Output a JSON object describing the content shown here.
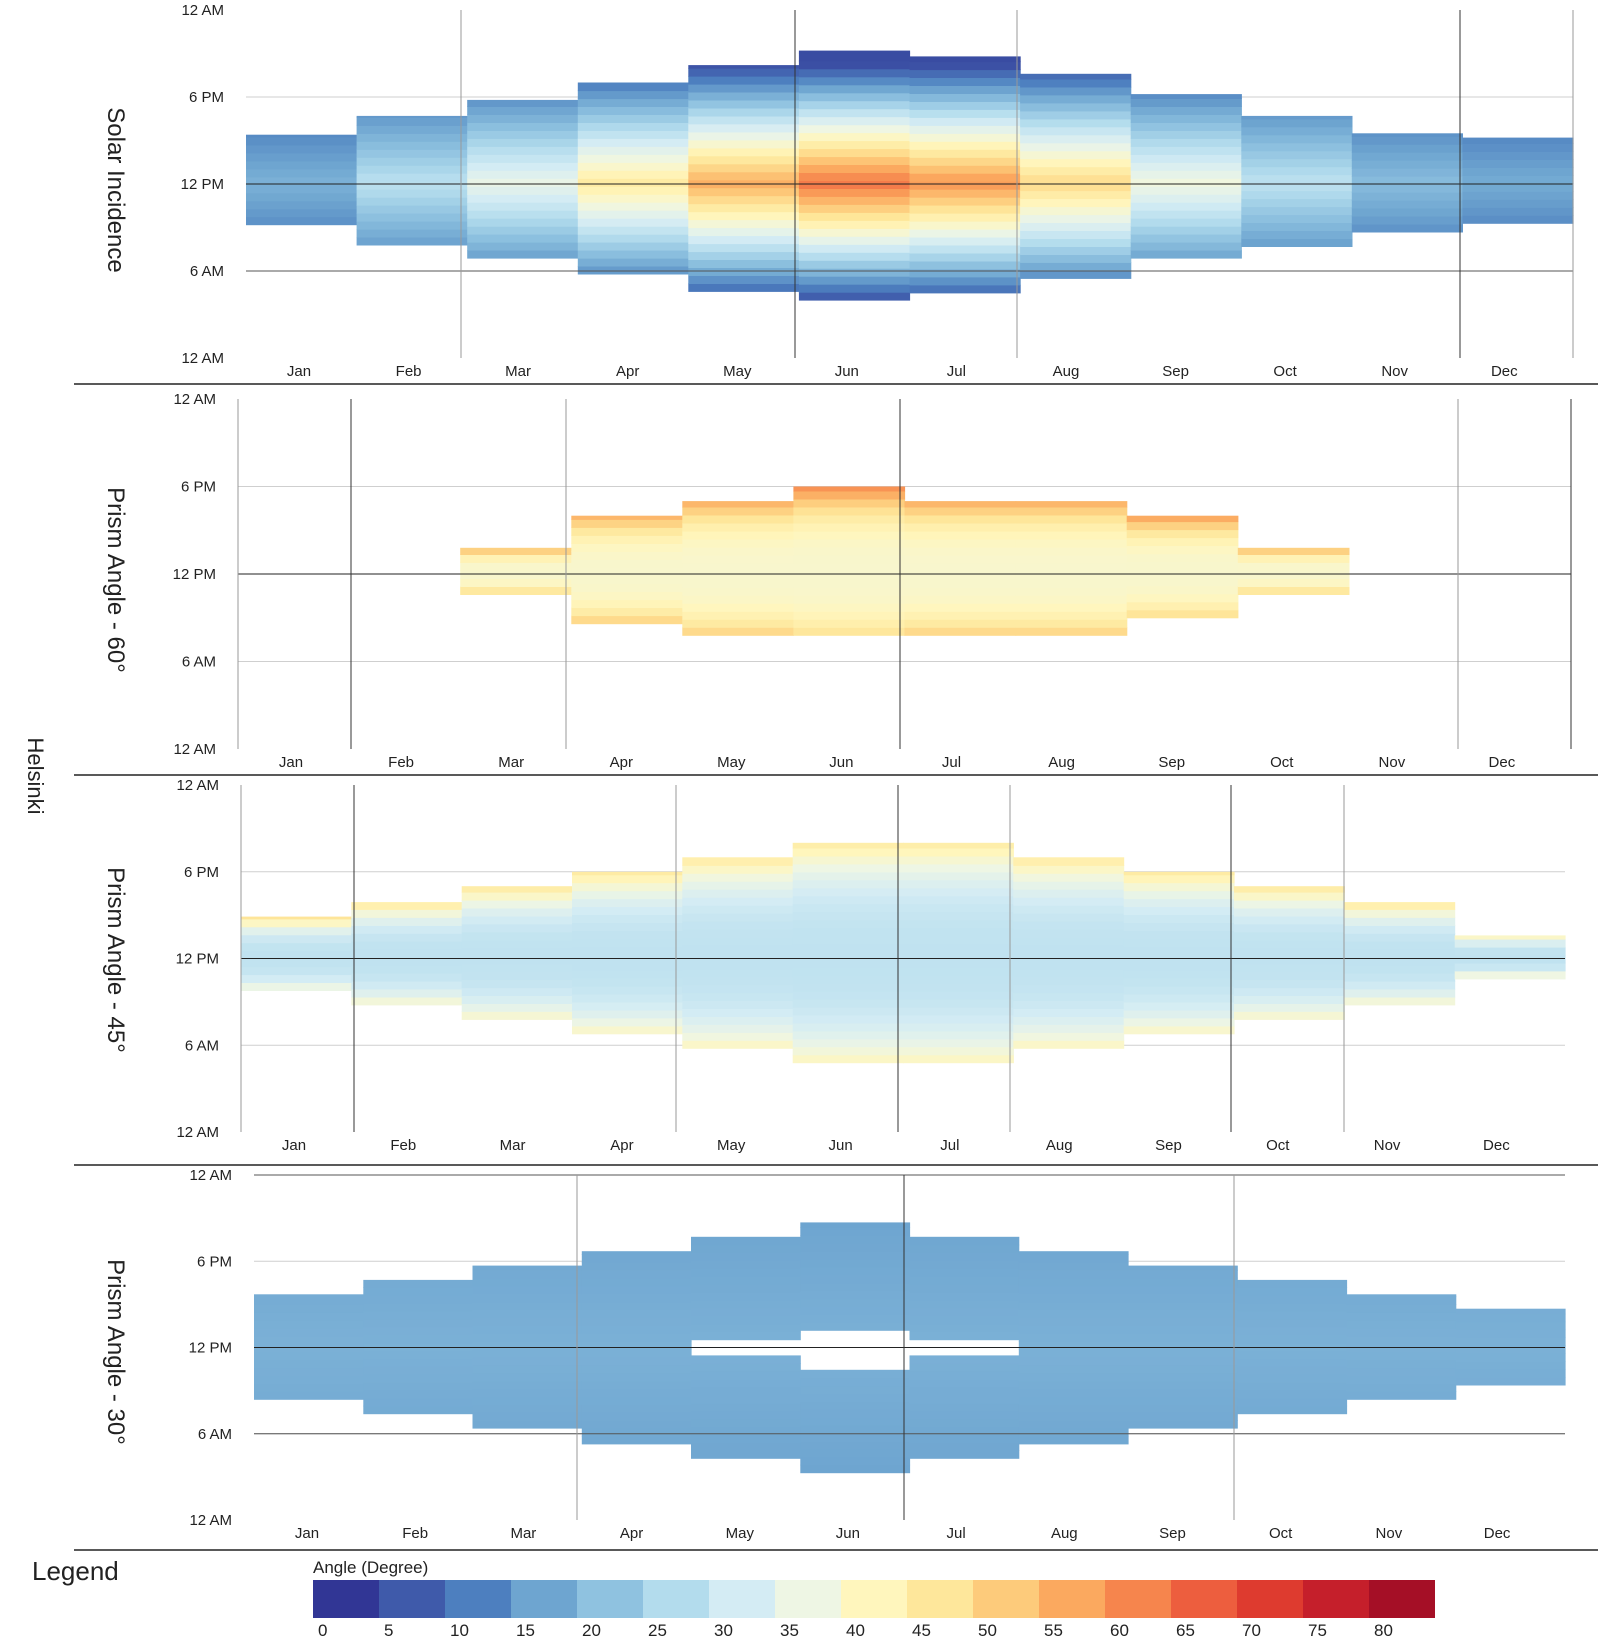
{
  "city": "Helsinki",
  "legend": {
    "title": "Legend",
    "subtitle": "Angle (Degree)",
    "ticks": [
      "0",
      "5",
      "10",
      "15",
      "20",
      "25",
      "30",
      "35",
      "40",
      "45",
      "50",
      "55",
      "60",
      "65",
      "70",
      "75",
      "80"
    ],
    "colors": [
      "#313695",
      "#3f5aaa",
      "#4d7fbf",
      "#6ea5d0",
      "#8fc2e0",
      "#b3dced",
      "#d4ecf4",
      "#eef6e4",
      "#fff6bd",
      "#fee79b",
      "#fdcb7b",
      "#fba95f",
      "#f6854d",
      "#ed5e3e",
      "#de3b2f",
      "#c51f2b",
      "#a50f26"
    ]
  },
  "chart_data": [
    {
      "type": "heatmap",
      "ylabel": "Solar Incidence",
      "x_ticks": [
        "Jan",
        "Feb",
        "Mar",
        "Apr",
        "May",
        "Jun",
        "Jul",
        "Aug",
        "Sep",
        "Oct",
        "Nov",
        "Dec"
      ],
      "y_ticks": [
        "12 AM",
        "6 PM",
        "12 PM",
        "6 AM",
        "12 AM"
      ],
      "y_range_hours": [
        0,
        24
      ],
      "daylight": [
        {
          "month": "Jan",
          "start": 9.2,
          "end": 15.4
        },
        {
          "month": "Feb",
          "start": 7.8,
          "end": 16.7
        },
        {
          "month": "Mar",
          "start": 6.9,
          "end": 17.8
        },
        {
          "month": "Apr",
          "start": 5.8,
          "end": 19.0
        },
        {
          "month": "May",
          "start": 4.6,
          "end": 20.2
        },
        {
          "month": "Jun",
          "start": 4.0,
          "end": 21.2
        },
        {
          "month": "Jul",
          "start": 4.5,
          "end": 20.8
        },
        {
          "month": "Aug",
          "start": 5.5,
          "end": 19.6
        },
        {
          "month": "Sep",
          "start": 6.9,
          "end": 18.2
        },
        {
          "month": "Oct",
          "start": 7.7,
          "end": 16.7
        },
        {
          "month": "Nov",
          "start": 8.7,
          "end": 15.5
        },
        {
          "month": "Dec",
          "start": 9.3,
          "end": 15.2
        }
      ],
      "peak_value": 62,
      "edge_value": 3
    },
    {
      "type": "heatmap",
      "ylabel": "Prism Angle - 60°",
      "x_ticks": [
        "Jan",
        "Feb",
        "Mar",
        "Apr",
        "May",
        "Jun",
        "Jul",
        "Aug",
        "Sep",
        "Oct",
        "Nov",
        "Dec"
      ],
      "y_ticks": [
        "12 AM",
        "6 PM",
        "12 PM",
        "6 AM",
        "12 AM"
      ],
      "y_range_hours": [
        0,
        24
      ],
      "daylight": [
        {
          "month": "Mar",
          "start": 10.6,
          "end": 13.8
        },
        {
          "month": "Apr",
          "start": 8.6,
          "end": 16.0
        },
        {
          "month": "May",
          "start": 7.8,
          "end": 17.0
        },
        {
          "month": "Jun",
          "start": 7.8,
          "end": 18.0
        },
        {
          "month": "Jul",
          "start": 7.8,
          "end": 17.0
        },
        {
          "month": "Aug",
          "start": 7.8,
          "end": 17.0
        },
        {
          "month": "Sep",
          "start": 9.0,
          "end": 16.0
        },
        {
          "month": "Oct",
          "start": 10.6,
          "end": 13.8
        }
      ],
      "peak_value": 38,
      "edge_value": 52
    },
    {
      "type": "heatmap",
      "ylabel": "Prism Angle - 45°",
      "x_ticks": [
        "Jan",
        "Feb",
        "Mar",
        "Apr",
        "May",
        "Jun",
        "Jul",
        "Aug",
        "Sep",
        "Oct",
        "Nov",
        "Dec"
      ],
      "y_ticks": [
        "12 AM",
        "6 PM",
        "12 PM",
        "6 AM",
        "12 AM"
      ],
      "y_range_hours": [
        0,
        24
      ],
      "daylight": [
        {
          "month": "Jan",
          "start": 9.8,
          "end": 14.9
        },
        {
          "month": "Feb",
          "start": 8.8,
          "end": 15.9
        },
        {
          "month": "Mar",
          "start": 7.8,
          "end": 17.0
        },
        {
          "month": "Apr",
          "start": 6.8,
          "end": 18.0
        },
        {
          "month": "May",
          "start": 5.8,
          "end": 19.0
        },
        {
          "month": "Jun",
          "start": 4.8,
          "end": 20.0
        },
        {
          "month": "Jul",
          "start": 4.8,
          "end": 20.0
        },
        {
          "month": "Aug",
          "start": 5.8,
          "end": 19.0
        },
        {
          "month": "Sep",
          "start": 6.8,
          "end": 18.0
        },
        {
          "month": "Oct",
          "start": 7.8,
          "end": 17.0
        },
        {
          "month": "Nov",
          "start": 8.8,
          "end": 15.9
        },
        {
          "month": "Dec",
          "start": 10.6,
          "end": 13.6
        }
      ],
      "peak_value": 27,
      "edge_value": 42
    },
    {
      "type": "heatmap",
      "ylabel": "Prism Angle - 30°",
      "x_ticks": [
        "Jan",
        "Feb",
        "Mar",
        "Apr",
        "May",
        "Jun",
        "Jul",
        "Aug",
        "Sep",
        "Oct",
        "Nov",
        "Dec"
      ],
      "y_ticks": [
        "12 AM",
        "6 PM",
        "12 PM",
        "6 AM",
        "12 AM"
      ],
      "y_range_hours": [
        0,
        24
      ],
      "daylight": [
        {
          "month": "Jan",
          "start": 8.4,
          "end": 15.7
        },
        {
          "month": "Feb",
          "start": 7.4,
          "end": 16.7
        },
        {
          "month": "Mar",
          "start": 6.4,
          "end": 17.7
        },
        {
          "month": "Apr",
          "start": 5.3,
          "end": 18.7
        },
        {
          "month": "May",
          "start": 4.3,
          "end": 19.7
        },
        {
          "month": "Jun",
          "start": 3.3,
          "end": 20.7
        },
        {
          "month": "Jul",
          "start": 4.3,
          "end": 19.7
        },
        {
          "month": "Aug",
          "start": 5.3,
          "end": 18.7
        },
        {
          "month": "Sep",
          "start": 6.4,
          "end": 17.7
        },
        {
          "month": "Oct",
          "start": 7.4,
          "end": 16.7
        },
        {
          "month": "Nov",
          "start": 8.4,
          "end": 15.7
        },
        {
          "month": "Dec",
          "start": 9.4,
          "end": 14.7
        }
      ],
      "hole": [
        {
          "month": "May",
          "start": 11.2,
          "end": 12.7
        },
        {
          "month": "Jun",
          "start": 10.4,
          "end": 13.0
        },
        {
          "month": "Jul",
          "start": 11.2,
          "end": 12.7
        }
      ],
      "peak_value": 17,
      "edge_value": 17
    }
  ]
}
